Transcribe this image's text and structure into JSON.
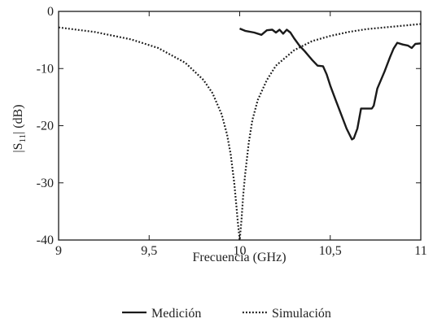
{
  "chart_data": {
    "type": "line",
    "title": "",
    "xlabel": "Frecuencia (GHz)",
    "ylabel_main": "|S",
    "ylabel_sub": "11",
    "ylabel_tail": "| (dB)",
    "xlim": [
      9,
      11
    ],
    "ylim": [
      -40,
      0
    ],
    "x_ticks": [
      {
        "value": 9,
        "label": "9"
      },
      {
        "value": 9.5,
        "label": "9,5"
      },
      {
        "value": 10,
        "label": "10"
      },
      {
        "value": 10.5,
        "label": "10,5"
      },
      {
        "value": 11,
        "label": "11"
      }
    ],
    "y_ticks": [
      {
        "value": 0,
        "label": "0"
      },
      {
        "value": -10,
        "label": "-10"
      },
      {
        "value": -20,
        "label": "-20"
      },
      {
        "value": -30,
        "label": "-30"
      },
      {
        "value": -40,
        "label": "-40"
      }
    ],
    "grid": false,
    "legend_position": "bottom-center",
    "series": [
      {
        "name": "Medición",
        "style": "solid",
        "color": "#1a1a1a",
        "x": [
          10.0,
          10.03,
          10.08,
          10.12,
          10.15,
          10.18,
          10.2,
          10.22,
          10.24,
          10.26,
          10.28,
          10.3,
          10.33,
          10.36,
          10.4,
          10.43,
          10.46,
          10.48,
          10.5,
          10.53,
          10.56,
          10.59,
          10.62,
          10.63,
          10.65,
          10.67,
          10.7,
          10.73,
          10.74,
          10.76,
          10.8,
          10.83,
          10.85,
          10.87,
          10.9,
          10.93,
          10.95,
          10.97,
          11.0
        ],
        "y": [
          -3.0,
          -3.4,
          -3.7,
          -4.1,
          -3.3,
          -3.2,
          -3.7,
          -3.2,
          -3.9,
          -3.2,
          -3.7,
          -4.7,
          -6.0,
          -7.0,
          -8.5,
          -9.5,
          -9.6,
          -11.0,
          -13.0,
          -15.5,
          -18.0,
          -20.5,
          -22.4,
          -22.2,
          -20.5,
          -17.0,
          -17.0,
          -17.0,
          -16.5,
          -13.5,
          -10.5,
          -8.0,
          -6.5,
          -5.5,
          -5.8,
          -6.0,
          -6.4,
          -5.7,
          -5.6
        ]
      },
      {
        "name": "Simulación",
        "style": "dotted",
        "color": "#1a1a1a",
        "x": [
          9.0,
          9.2,
          9.4,
          9.55,
          9.7,
          9.8,
          9.85,
          9.9,
          9.93,
          9.95,
          9.97,
          9.98,
          9.99,
          10.0,
          10.01,
          10.02,
          10.03,
          10.05,
          10.07,
          10.1,
          10.15,
          10.2,
          10.3,
          10.4,
          10.5,
          10.6,
          10.7,
          10.8,
          10.9,
          11.0
        ],
        "y": [
          -2.8,
          -3.6,
          -4.9,
          -6.4,
          -9.0,
          -12.0,
          -14.3,
          -18.0,
          -21.5,
          -25.0,
          -30.0,
          -33.5,
          -37.0,
          -40.0,
          -36.5,
          -32.0,
          -28.5,
          -23.0,
          -19.0,
          -15.5,
          -12.0,
          -9.5,
          -6.8,
          -5.2,
          -4.3,
          -3.6,
          -3.1,
          -2.8,
          -2.5,
          -2.2
        ]
      }
    ]
  }
}
